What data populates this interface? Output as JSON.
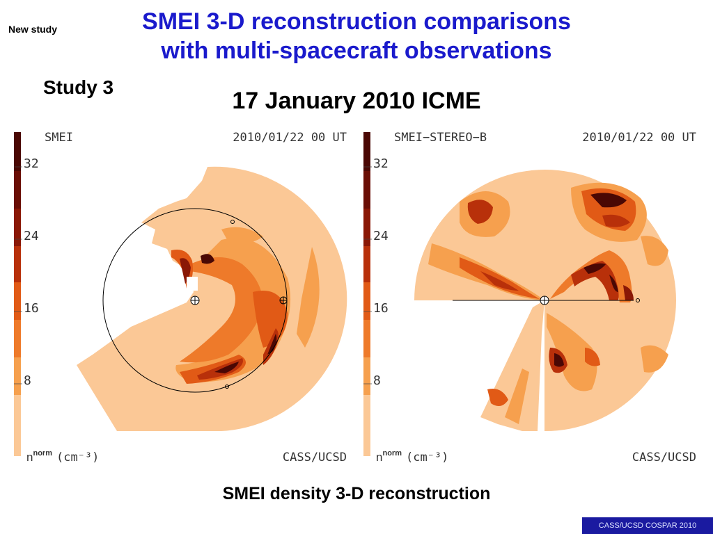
{
  "header": {
    "new_study": "New study",
    "title_line1": "SMEI 3-D reconstruction comparisons",
    "title_line2": "with multi-spacecraft observations",
    "study_label": "Study 3",
    "event_title": "17 January 2010 ICME"
  },
  "panels": [
    {
      "label": "SMEI",
      "timestamp": "2010/01/22 00 UT",
      "colorbar_ticks": [
        "32",
        "24",
        "16",
        "8"
      ],
      "units_main": "n",
      "units_sup": "norm",
      "units_rest": "(cm⁻³)",
      "credit": "CASS/UCSD"
    },
    {
      "label": "SMEI−STEREO−B",
      "timestamp": "2010/01/22 00 UT",
      "colorbar_ticks": [
        "32",
        "24",
        "16",
        "8"
      ],
      "units_main": "n",
      "units_sup": "norm",
      "units_rest": "(cm⁻³)",
      "credit": "CASS/UCSD"
    }
  ],
  "caption": "SMEI density 3-D reconstruction",
  "footer": "CASS/UCSD COSPAR 2010",
  "colors": {
    "title": "#1a1acc",
    "scale": [
      "#fbc896",
      "#f6a04e",
      "#ee7a2a",
      "#e15a16",
      "#b8300a",
      "#8a1806",
      "#4a0804"
    ],
    "footer_bg": "#1a1aa0"
  }
}
